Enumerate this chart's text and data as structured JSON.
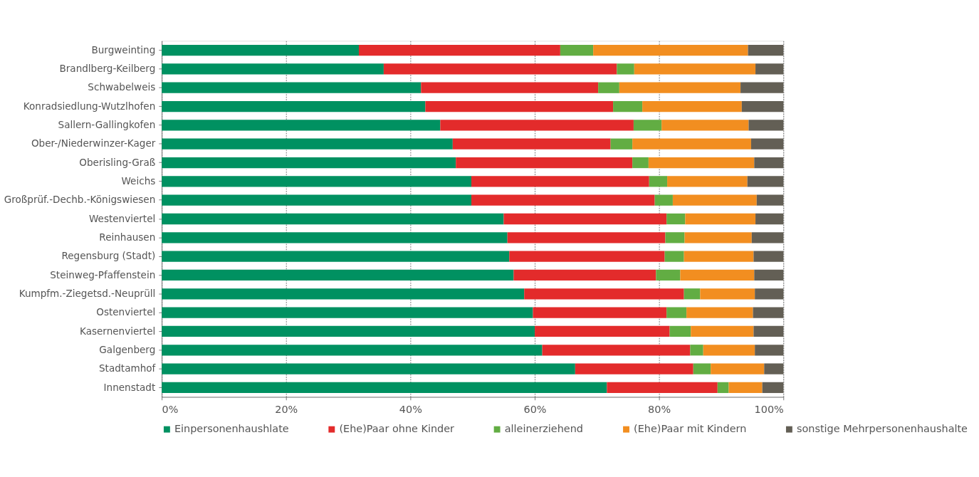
{
  "chart_data": {
    "type": "bar",
    "orientation": "horizontal",
    "stacked": true,
    "categories": [
      "Burgweinting",
      "Brandlberg-Keilberg",
      "Schwabelweis",
      "Konradsiedlung-Wutzlhofen",
      "Sallern-Gallingkofen",
      "Ober-/Niederwinzer-Kager",
      "Oberisling-Graß",
      "Weichs",
      "Großprüf.-Dechb.-Königswiesen",
      "Westenviertel",
      "Reinhausen",
      "Regensburg (Stadt)",
      "Steinweg-Pfaffenstein",
      "Kumpfm.-Ziegetsd.-Neuprüll",
      "Ostenviertel",
      "Kasernenviertel",
      "Galgenberg",
      "Stadtamhof",
      "Innenstadt"
    ],
    "series": [
      {
        "name": "Einpersonenhaushlate",
        "color": "#009161",
        "values": [
          31.7,
          35.7,
          41.7,
          42.4,
          44.8,
          46.8,
          47.3,
          49.8,
          49.8,
          55.0,
          55.6,
          55.9,
          56.6,
          58.3,
          59.7,
          60.0,
          61.2,
          66.5,
          71.6
        ]
      },
      {
        "name": "(Ehe)Paar ohne Kinder",
        "color": "#e32b2b",
        "values": [
          32.4,
          37.5,
          28.5,
          30.2,
          31.1,
          25.4,
          28.4,
          28.6,
          29.5,
          26.2,
          25.4,
          25.0,
          22.9,
          25.7,
          21.5,
          21.7,
          23.8,
          19.0,
          17.8
        ]
      },
      {
        "name": "alleinerziehend",
        "color": "#62ad43",
        "values": [
          5.3,
          2.8,
          3.4,
          4.7,
          4.5,
          3.5,
          2.6,
          2.9,
          2.9,
          3.0,
          3.1,
          3.1,
          3.9,
          2.6,
          3.2,
          3.4,
          2.1,
          2.8,
          1.8
        ]
      },
      {
        "name": "(Ehe)Paar mit Kindern",
        "color": "#f28e20",
        "values": [
          24.9,
          19.5,
          19.5,
          16.0,
          14.0,
          19.1,
          17.0,
          12.9,
          13.5,
          11.3,
          10.8,
          11.2,
          11.9,
          8.8,
          10.7,
          10.1,
          8.3,
          8.6,
          5.4
        ]
      },
      {
        "name": "sonstige Mehrpersonenhaushalte",
        "color": "#635f55",
        "values": [
          5.7,
          4.5,
          6.9,
          6.7,
          5.6,
          5.2,
          4.7,
          5.8,
          4.3,
          4.5,
          5.1,
          4.8,
          4.7,
          4.6,
          4.9,
          4.8,
          4.6,
          3.1,
          3.4
        ]
      }
    ],
    "xlim": [
      0,
      100
    ],
    "xticks": [
      {
        "value": 0,
        "label": "0%"
      },
      {
        "value": 20,
        "label": "20%"
      },
      {
        "value": 40,
        "label": "40%"
      },
      {
        "value": 60,
        "label": "60%"
      },
      {
        "value": 80,
        "label": "80%"
      },
      {
        "value": 100,
        "label": "100%"
      }
    ],
    "grid": "x",
    "legend": "bottom"
  }
}
